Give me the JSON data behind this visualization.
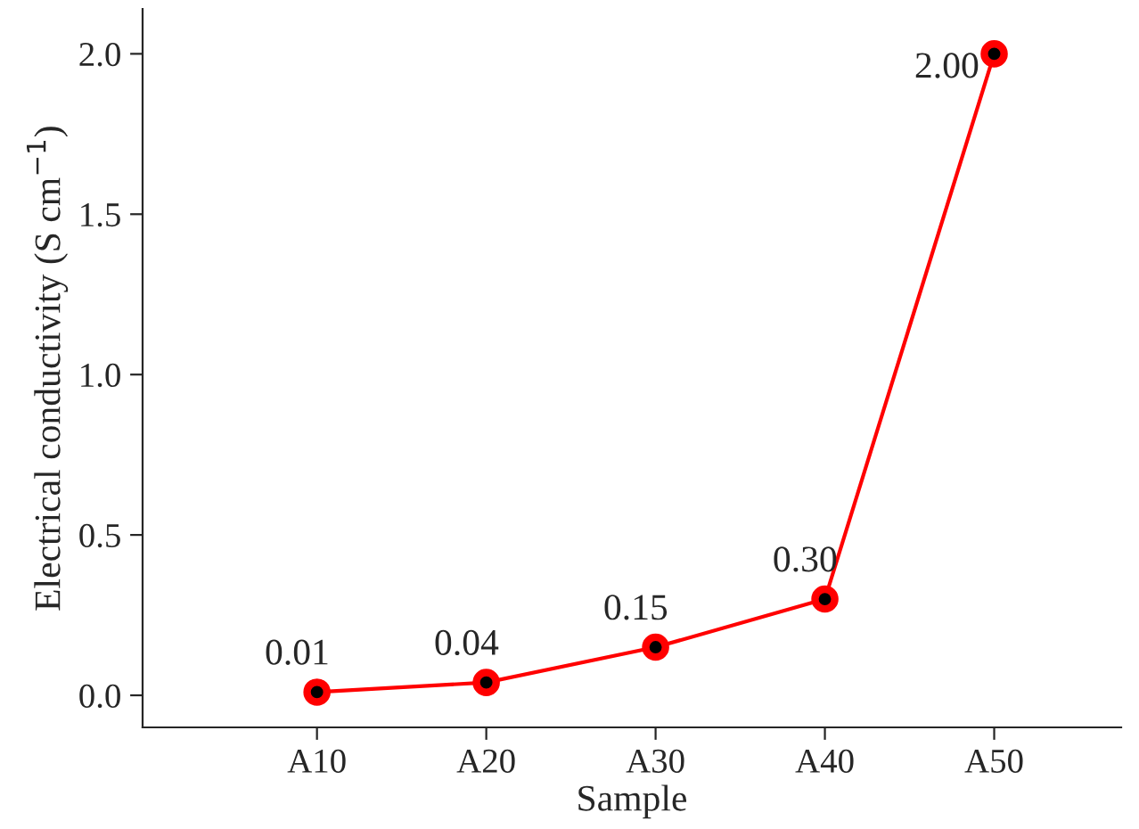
{
  "chart_data": {
    "type": "line",
    "xlabel": "Sample",
    "ylabel": "Electrical conductivity (S cm$^{−1}$)",
    "categories": [
      "A10",
      "A20",
      "A30",
      "A40",
      "A50"
    ],
    "series": [
      {
        "color": "#ff0000",
        "values": [
          0.01,
          0.04,
          0.15,
          0.3,
          2.0
        ]
      }
    ],
    "value_labels": [
      "0.01",
      "0.04",
      "0.15",
      "0.30",
      "2.00"
    ],
    "ylim": [
      -0.1,
      2.14
    ],
    "yticks": [
      {
        "value": 0,
        "label": "0.0"
      },
      {
        "value": 0.5,
        "label": "0.5"
      },
      {
        "value": 1.0,
        "label": "1.0"
      },
      {
        "value": 1.5,
        "label": "1.5"
      },
      {
        "value": 2.0,
        "label": "2.0"
      }
    ],
    "marker": "circle",
    "line_style": "solid",
    "grid": false,
    "legend": false
  }
}
